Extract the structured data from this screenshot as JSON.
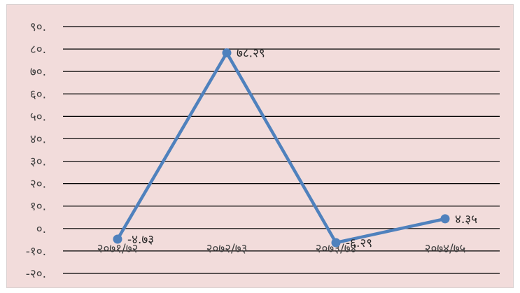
{
  "chart_data": {
    "type": "line",
    "title": "",
    "xlabel": "",
    "ylabel": "",
    "background": "#f2dcdb",
    "gridline_color": "#000000",
    "line_color": "#4f81bd",
    "grid": true,
    "legend": "none",
    "ylim": [
      -20,
      90
    ],
    "y_ticks": [
      -20,
      -10,
      0,
      10,
      20,
      30,
      40,
      50,
      60,
      70,
      80,
      90
    ],
    "y_tick_labels": [
      "-२०.",
      "-१०.",
      "०.",
      "१०.",
      "२०.",
      "३०.",
      "४०.",
      "५०.",
      "६०.",
      "७०.",
      "८०.",
      "९०."
    ],
    "categories": [
      "२०७१/७२",
      "२०७२/७३",
      "२०७३/७४",
      "२०७४/७५"
    ],
    "series": [
      {
        "values": [
          -4.73,
          78.29,
          -6.29,
          4.35
        ],
        "labels": [
          "-४.७३",
          "७८.२९",
          "-६.२९",
          "४.३५"
        ]
      }
    ]
  }
}
